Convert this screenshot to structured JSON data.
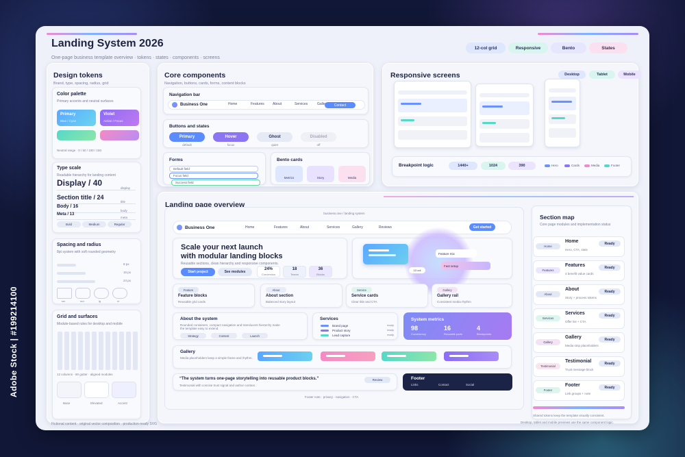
{
  "header": {
    "title": "Landing System 2026",
    "subtitle": "One-page business template overview · tokens · states · components · screens",
    "pills": [
      "12-col grid",
      "Responsive",
      "Bento",
      "States"
    ]
  },
  "design_tokens": {
    "title": "Design tokens",
    "subtitle": "Brand, type, spacing, radius, grid",
    "color_palette": {
      "title": "Color palette",
      "subtitle": "Primary accents and neutral surfaces",
      "swatches": [
        {
          "name": "Primary",
          "note": "Blue / Cyan"
        },
        {
          "name": "Violet",
          "note": "Action / Focus"
        }
      ],
      "neutral_note": "Neutral range · 0 / 50 / 100 / 150"
    },
    "type_scale": {
      "title": "Type scale",
      "subtitle": "Readable hierarchy for landing content",
      "samples": [
        {
          "text": "Display / 40",
          "tag": "display"
        },
        {
          "text": "Section title / 24",
          "tag": "title"
        },
        {
          "text": "Body / 16",
          "tag": "body"
        },
        {
          "text": "Meta / 13",
          "tag": "meta"
        }
      ],
      "weights": [
        "Bold",
        "Medium",
        "Regular"
      ]
    },
    "spacing": {
      "title": "Spacing and radius",
      "subtitle": "8pt system with soft rounded geometry",
      "sizes": [
        "8 px",
        "16 px",
        "24 px"
      ],
      "radii": [
        "sm",
        "md",
        "lg",
        "xl"
      ]
    },
    "grid": {
      "title": "Grid and surfaces",
      "subtitle": "Module-based rules for desktop and mobile",
      "note": "12 columns · 80 gutter · aligned modules",
      "surfaces": [
        "Base",
        "Elevated",
        "Accent"
      ]
    }
  },
  "core_components": {
    "title": "Core components",
    "subtitle": "Navigation, buttons, cards, forms, content blocks",
    "nav": {
      "title": "Navigation bar",
      "brand": "Business One",
      "links": [
        "Home",
        "Features",
        "About",
        "Services",
        "Gallery",
        "Contact"
      ]
    },
    "buttons": {
      "title": "Buttons and states",
      "items": [
        {
          "label": "Primary",
          "state": "default"
        },
        {
          "label": "Hover",
          "state": "focus"
        },
        {
          "label": "Ghost",
          "state": "quiet"
        },
        {
          "label": "Disabled",
          "state": "off"
        }
      ]
    },
    "forms": {
      "title": "Forms",
      "fields": [
        "Default field",
        "Focus field",
        "Success field"
      ]
    },
    "bento": {
      "title": "Bento cards",
      "cards": [
        "Metrics",
        "Story",
        "Media"
      ]
    }
  },
  "responsive": {
    "title": "Responsive screens",
    "tabs": [
      "Desktop",
      "Tablet",
      "Mobile"
    ],
    "breakpoint": {
      "title": "Breakpoint logic",
      "sizes": [
        "1440+",
        "1024",
        "390"
      ],
      "legend": [
        "Hero",
        "Cards",
        "Media",
        "Footer"
      ]
    }
  },
  "landing": {
    "title": "Landing page overview",
    "url": "business.one / landing system",
    "nav": {
      "brand": "Business One",
      "links": [
        "Home",
        "Features",
        "About",
        "Services",
        "Gallery",
        "Reviews"
      ],
      "cta": "Get started"
    },
    "hero": {
      "title": [
        "Scale your next launch",
        "with modular landing blocks"
      ],
      "subtitle": "Reusable sections, clean hierarchy and responsive components.",
      "buttons": [
        "Start project",
        "See modules"
      ],
      "stats": [
        {
          "value": "24%",
          "label": "Conversion"
        },
        {
          "value": "18",
          "label": "Teams"
        },
        {
          "value": "36",
          "label": "Blocks"
        }
      ],
      "visual": [
        "Feature mix",
        "Fast setup",
        "12-col"
      ]
    },
    "features": [
      {
        "tag": "Feature",
        "title": "Feature blocks",
        "text": "Reusable grid cards"
      },
      {
        "tag": "About",
        "title": "About section",
        "text": "Balanced story layout"
      },
      {
        "tag": "Service",
        "title": "Service cards",
        "text": "Clear title and CTA"
      },
      {
        "tag": "Gallery",
        "title": "Gallery rail",
        "text": "Consistent media rhythm"
      }
    ],
    "about": {
      "title": "About the system",
      "text": "Rounded containers, compact navigation and translucent hierarchy make the template easy to extend.",
      "chips": [
        "Strategy",
        "Content",
        "Launch"
      ]
    },
    "services": {
      "title": "Services",
      "items": [
        {
          "name": "Brand page",
          "status": "ready"
        },
        {
          "name": "Product story",
          "status": "ready"
        },
        {
          "name": "Lead capture",
          "status": "ready"
        }
      ]
    },
    "metrics": {
      "title": "System metrics",
      "items": [
        {
          "value": "98",
          "label": "Consistency"
        },
        {
          "value": "16",
          "label": "Reusable parts"
        },
        {
          "value": "4",
          "label": "Breakpoints"
        }
      ]
    },
    "gallery": {
      "title": "Gallery",
      "text": "Media placeholders keep a simple frame and rhythm."
    },
    "quote": {
      "text": "“The system turns one-page storytelling into reusable product blocks.”",
      "note": "Testimonial with concise trust signal and author context.",
      "tag": "Review"
    },
    "footer": {
      "title": "Footer",
      "links": [
        "Links",
        "Contact",
        "Social"
      ]
    },
    "footnote": "Footer note · privacy · navigation · CTA"
  },
  "section_map": {
    "title": "Section map",
    "subtitle": "Core page modules and implementation status",
    "items": [
      {
        "tag": "Home",
        "title": "Home",
        "text": "Hero, CTA, stats",
        "status": "Ready"
      },
      {
        "tag": "Features",
        "title": "Features",
        "text": "4 benefit value cards",
        "status": "Ready"
      },
      {
        "tag": "About",
        "title": "About",
        "text": "Story + process tokens",
        "status": "Ready"
      },
      {
        "tag": "Services",
        "title": "Services",
        "text": "Offer list + CTA",
        "status": "Ready"
      },
      {
        "tag": "Gallery",
        "title": "Gallery",
        "text": "Media strip placeholders",
        "status": "Ready"
      },
      {
        "tag": "Testimonial",
        "title": "Testimonial",
        "text": "Trust message block",
        "status": "Ready"
      },
      {
        "tag": "Footer",
        "title": "Footer",
        "text": "Link groups + note",
        "status": "Ready"
      }
    ],
    "notes": [
      "Shared tokens keep the template visually consistent.",
      "Desktop, tablet and mobile previews use the same component logic."
    ]
  },
  "credit": "Fictional content · original vector composition · production-ready SVG",
  "watermark": "Adobe Stock | #199214100"
}
